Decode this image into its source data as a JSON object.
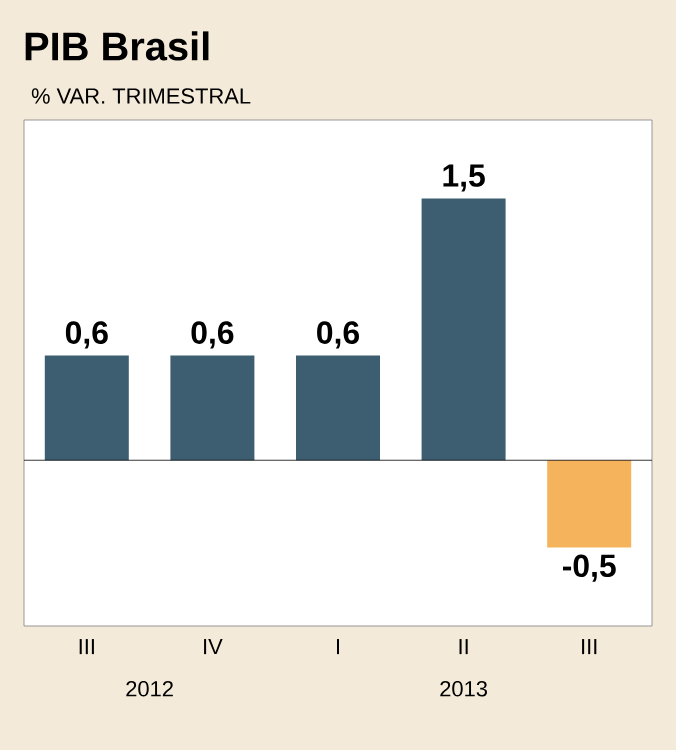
{
  "chart_data": {
    "type": "bar",
    "title": "PIB Brasil",
    "subtitle": "% VAR. TRIMESTRAL",
    "categories": [
      "III",
      "IV",
      "I",
      "II",
      "III"
    ],
    "values": [
      0.6,
      0.6,
      0.6,
      1.5,
      -0.5
    ],
    "colors": [
      "#3d5e70",
      "#3d5e70",
      "#3d5e70",
      "#3d5e70",
      "#f5b35c"
    ],
    "value_labels": [
      "0,6",
      "0,6",
      "0,6",
      "1,5",
      "-0,5"
    ],
    "annotations": [
      "2012",
      "2013"
    ]
  }
}
